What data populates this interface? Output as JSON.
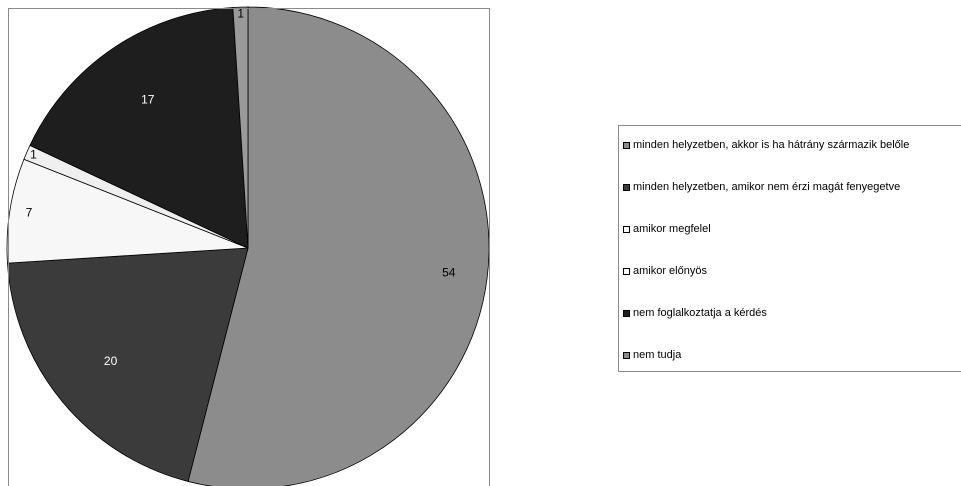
{
  "chart_data": {
    "type": "pie",
    "title": "",
    "slices": [
      {
        "label": "minden helyzetben, akkor is ha hátrány származik belőle",
        "value": 54,
        "display": "54",
        "color": "#8c8c8c",
        "text_color": "#000000"
      },
      {
        "label": "minden helyzetben, amikor nem érzi magát fenyegetve",
        "value": 20,
        "display": "20",
        "color": "#3b3b3b",
        "text_color": "#ffffff"
      },
      {
        "label": "amikor megfelel",
        "value": 7,
        "display": "7",
        "color": "#f7f7f7",
        "text_color": "#000000"
      },
      {
        "label": "amikor előnyös",
        "value": 1,
        "display": "1",
        "color": "#efefef",
        "text_color": "#000000"
      },
      {
        "label": "nem foglalkoztatja a kérdés",
        "value": 17,
        "display": "17",
        "color": "#1e1e1e",
        "text_color": "#ffffff"
      },
      {
        "label": "nem tudja",
        "value": 1,
        "display": "1",
        "color": "#9a9a9a",
        "text_color": "#000000"
      }
    ],
    "legend": {
      "position": "right",
      "items": [
        {
          "label": "minden helyzetben, akkor is ha hátrány származik belőle",
          "color": "#8c8c8c"
        },
        {
          "label": "minden helyzetben, amikor nem érzi magát fenyegetve",
          "color": "#3b3b3b"
        },
        {
          "label": "amikor megfelel",
          "color": "#ffffff"
        },
        {
          "label": "amikor előnyös",
          "color": "#ffffff"
        },
        {
          "label": "nem foglalkoztatja a kérdés",
          "color": "#1e1e1e"
        },
        {
          "label": "nem tudja",
          "color": "#8c8c8c"
        }
      ]
    }
  }
}
